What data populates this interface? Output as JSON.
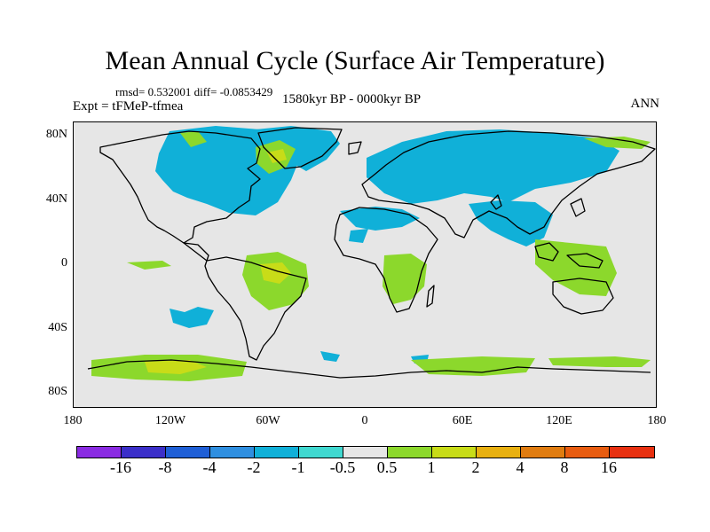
{
  "title": "Mean Annual Cycle (Surface Air Temperature)",
  "stats": "rmsd= 0.532001 diff= -0.0853429",
  "experiment": "Expt = tFMeP-tfmea",
  "period": "1580kyr BP - 0000kyr BP",
  "season": "ANN",
  "axes": {
    "lat_labels": [
      "80N",
      "40N",
      "0",
      "40S",
      "80S"
    ],
    "lon_labels": [
      "180",
      "120W",
      "60W",
      "0",
      "60E",
      "120E",
      "180"
    ]
  },
  "legend": {
    "colors": [
      "#8a2be2",
      "#3b2fc9",
      "#1f5fd6",
      "#2f8fe0",
      "#10b0d8",
      "#40d8d0",
      "#e6e6e6",
      "#8cd82c",
      "#c8dc18",
      "#e8b010",
      "#e07c10",
      "#e85c10",
      "#e83010"
    ],
    "labels": [
      "-16",
      "-8",
      "-4",
      "-2",
      "-1",
      "-0.5",
      "0.5",
      "1",
      "2",
      "4",
      "8",
      "16"
    ]
  },
  "colors": {
    "map_background": "#e6e6e6",
    "cool_anomaly": "#10b0d8",
    "warm_anomaly": "#8cd82c",
    "warmer_anomaly": "#c8dc18"
  }
}
